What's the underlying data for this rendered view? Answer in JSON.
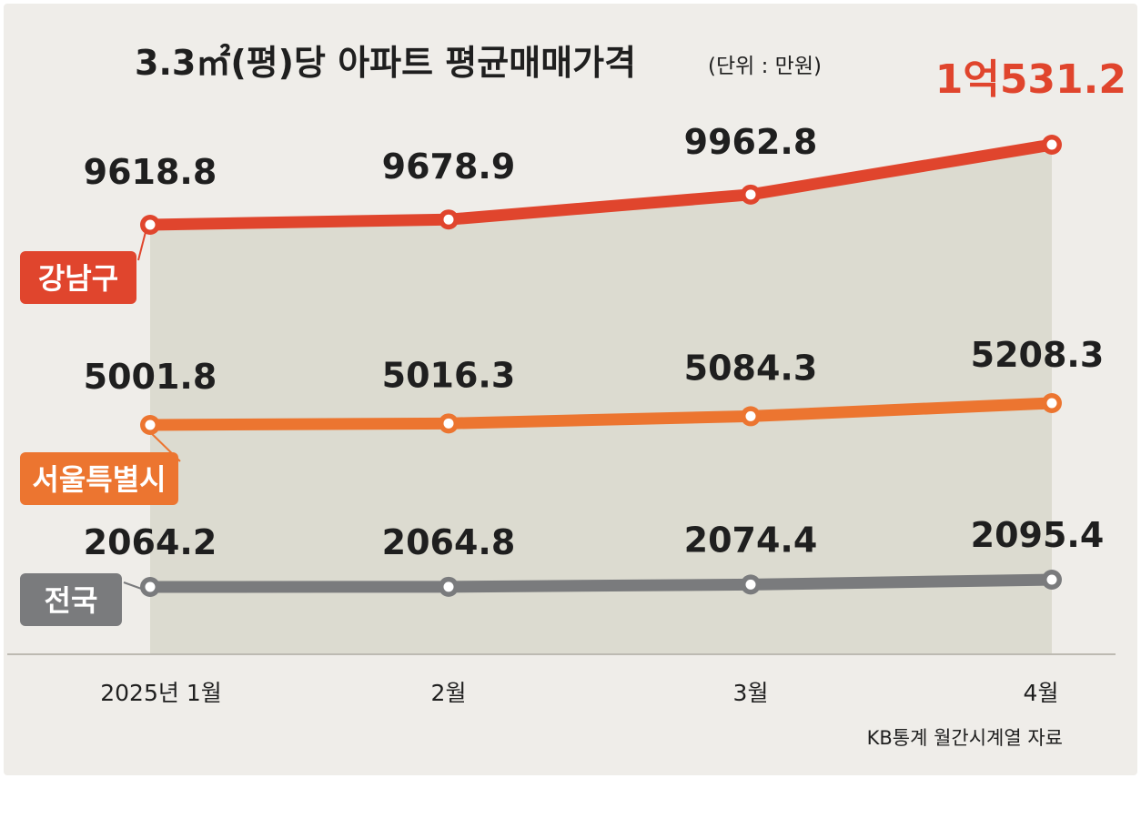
{
  "title": "3.3㎡(평)당 아파트 평균매매가격",
  "unit": "(단위 : 만원)",
  "source": "KB통계 월간시계열 자료",
  "colors": {
    "background": "#efede9",
    "plot_fill": "#dcdbd0",
    "gangnam": "#e0452d",
    "seoul": "#ec7530",
    "national": "#7a7b7d",
    "text": "#1f1f1f"
  },
  "chart_data": {
    "type": "line",
    "categories": [
      "2025년 1월",
      "2월",
      "3월",
      "4월"
    ],
    "series": [
      {
        "name": "강남구",
        "values": [
          9618.8,
          9678.9,
          9962.8,
          10531.2
        ],
        "labels": [
          "9618.8",
          "9678.9",
          "9962.8",
          "1억531.2"
        ]
      },
      {
        "name": "서울특별시",
        "values": [
          5001.8,
          5016.3,
          5084.3,
          5208.3
        ],
        "labels": [
          "5001.8",
          "5016.3",
          "5084.3",
          "5208.3"
        ]
      },
      {
        "name": "전국",
        "values": [
          2064.2,
          2064.8,
          2074.4,
          2095.4
        ],
        "labels": [
          "2064.2",
          "2064.8",
          "2074.4",
          "2095.4"
        ]
      }
    ],
    "grid": false,
    "legend": "left"
  }
}
